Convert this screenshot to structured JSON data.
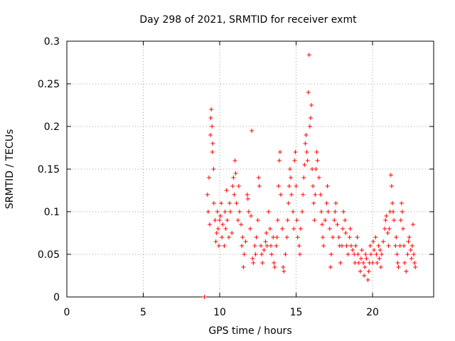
{
  "chart_data": {
    "type": "scatter",
    "title": "Day 298 of 2021, SRMTID for receiver exmt",
    "xlabel": "GPS time / hours",
    "ylabel": "SRMTID / TECUs",
    "xlim": [
      0,
      24
    ],
    "ylim": [
      0,
      0.3
    ],
    "xticks": [
      0,
      5,
      10,
      15,
      20
    ],
    "xtick_labels": [
      "0",
      "5",
      "10",
      "15",
      "20"
    ],
    "yticks": [
      0,
      0.05,
      0.1,
      0.15,
      0.2,
      0.25,
      0.3
    ],
    "ytick_labels": [
      "0",
      "0.05",
      "0.1",
      "0.15",
      "0.2",
      "0.25",
      "0.3"
    ],
    "grid": true,
    "marker": "+",
    "color": "#ff0000",
    "series": [
      {
        "name": "SRMTID",
        "points": [
          [
            9.0,
            0.0
          ],
          [
            9.2,
            0.12
          ],
          [
            9.25,
            0.1
          ],
          [
            9.3,
            0.14
          ],
          [
            9.35,
            0.085
          ],
          [
            9.4,
            0.19
          ],
          [
            9.42,
            0.21
          ],
          [
            9.45,
            0.22
          ],
          [
            9.5,
            0.2
          ],
          [
            9.52,
            0.17
          ],
          [
            9.55,
            0.18
          ],
          [
            9.6,
            0.15
          ],
          [
            9.62,
            0.11
          ],
          [
            9.7,
            0.09
          ],
          [
            9.75,
            0.065
          ],
          [
            9.8,
            0.075
          ],
          [
            9.85,
            0.1
          ],
          [
            9.9,
            0.08
          ],
          [
            9.95,
            0.06
          ],
          [
            10.0,
            0.09
          ],
          [
            10.05,
            0.095
          ],
          [
            10.1,
            0.11
          ],
          [
            10.15,
            0.07
          ],
          [
            10.2,
            0.085
          ],
          [
            10.3,
            0.06
          ],
          [
            10.35,
            0.1
          ],
          [
            10.4,
            0.08
          ],
          [
            10.45,
            0.125
          ],
          [
            10.5,
            0.09
          ],
          [
            10.6,
            0.07
          ],
          [
            10.65,
            0.11
          ],
          [
            10.7,
            0.1
          ],
          [
            10.8,
            0.075
          ],
          [
            10.85,
            0.13
          ],
          [
            10.9,
            0.14
          ],
          [
            10.95,
            0.12
          ],
          [
            11.0,
            0.16
          ],
          [
            11.05,
            0.145
          ],
          [
            11.1,
            0.11
          ],
          [
            11.2,
            0.09
          ],
          [
            11.25,
            0.13
          ],
          [
            11.3,
            0.1
          ],
          [
            11.4,
            0.085
          ],
          [
            11.45,
            0.06
          ],
          [
            11.5,
            0.07
          ],
          [
            11.55,
            0.035
          ],
          [
            11.6,
            0.05
          ],
          [
            11.7,
            0.065
          ],
          [
            11.8,
            0.12
          ],
          [
            11.85,
            0.115
          ],
          [
            11.9,
            0.1
          ],
          [
            12.0,
            0.08
          ],
          [
            12.05,
            0.095
          ],
          [
            12.1,
            0.195
          ],
          [
            12.15,
            0.045
          ],
          [
            12.2,
            0.04
          ],
          [
            12.3,
            0.06
          ],
          [
            12.35,
            0.05
          ],
          [
            12.4,
            0.07
          ],
          [
            12.5,
            0.09
          ],
          [
            12.55,
            0.14
          ],
          [
            12.6,
            0.13
          ],
          [
            12.7,
            0.06
          ],
          [
            12.75,
            0.05
          ],
          [
            12.8,
            0.04
          ],
          [
            12.9,
            0.055
          ],
          [
            13.0,
            0.065
          ],
          [
            13.05,
            0.075
          ],
          [
            13.1,
            0.06
          ],
          [
            13.2,
            0.1
          ],
          [
            13.3,
            0.08
          ],
          [
            13.35,
            0.06
          ],
          [
            13.4,
            0.05
          ],
          [
            13.5,
            0.07
          ],
          [
            13.55,
            0.04
          ],
          [
            13.6,
            0.035
          ],
          [
            13.7,
            0.06
          ],
          [
            13.75,
            0.07
          ],
          [
            13.8,
            0.09
          ],
          [
            13.85,
            0.13
          ],
          [
            13.9,
            0.16
          ],
          [
            13.95,
            0.17
          ],
          [
            14.0,
            0.12
          ],
          [
            14.1,
            0.08
          ],
          [
            14.15,
            0.035
          ],
          [
            14.2,
            0.03
          ],
          [
            14.3,
            0.05
          ],
          [
            14.4,
            0.07
          ],
          [
            14.45,
            0.09
          ],
          [
            14.5,
            0.11
          ],
          [
            14.55,
            0.13
          ],
          [
            14.6,
            0.15
          ],
          [
            14.65,
            0.14
          ],
          [
            14.7,
            0.12
          ],
          [
            14.8,
            0.1
          ],
          [
            14.85,
            0.08
          ],
          [
            14.9,
            0.16
          ],
          [
            14.95,
            0.17
          ],
          [
            15.0,
            0.13
          ],
          [
            15.05,
            0.09
          ],
          [
            15.1,
            0.07
          ],
          [
            15.2,
            0.06
          ],
          [
            15.25,
            0.05
          ],
          [
            15.3,
            0.08
          ],
          [
            15.4,
            0.1
          ],
          [
            15.45,
            0.12
          ],
          [
            15.5,
            0.14
          ],
          [
            15.55,
            0.155
          ],
          [
            15.6,
            0.18
          ],
          [
            15.65,
            0.19
          ],
          [
            15.7,
            0.17
          ],
          [
            15.75,
            0.16
          ],
          [
            15.8,
            0.24
          ],
          [
            15.85,
            0.284
          ],
          [
            15.9,
            0.2
          ],
          [
            15.95,
            0.21
          ],
          [
            16.0,
            0.225
          ],
          [
            16.05,
            0.15
          ],
          [
            16.1,
            0.13
          ],
          [
            16.15,
            0.11
          ],
          [
            16.2,
            0.09
          ],
          [
            16.25,
            0.12
          ],
          [
            16.3,
            0.15
          ],
          [
            16.35,
            0.17
          ],
          [
            16.4,
            0.16
          ],
          [
            16.5,
            0.14
          ],
          [
            16.6,
            0.12
          ],
          [
            16.65,
            0.1
          ],
          [
            16.7,
            0.085
          ],
          [
            16.75,
            0.07
          ],
          [
            16.8,
            0.06
          ],
          [
            16.9,
            0.09
          ],
          [
            17.0,
            0.11
          ],
          [
            17.05,
            0.13
          ],
          [
            17.1,
            0.1
          ],
          [
            17.2,
            0.08
          ],
          [
            17.25,
            0.035
          ],
          [
            17.3,
            0.05
          ],
          [
            17.4,
            0.07
          ],
          [
            17.5,
            0.09
          ],
          [
            17.55,
            0.1
          ],
          [
            17.6,
            0.11
          ],
          [
            17.7,
            0.085
          ],
          [
            17.8,
            0.07
          ],
          [
            17.85,
            0.06
          ],
          [
            17.9,
            0.04
          ],
          [
            18.0,
            0.06
          ],
          [
            18.05,
            0.08
          ],
          [
            18.1,
            0.1
          ],
          [
            18.2,
            0.09
          ],
          [
            18.25,
            0.075
          ],
          [
            18.3,
            0.06
          ],
          [
            18.4,
            0.05
          ],
          [
            18.5,
            0.07
          ],
          [
            18.55,
            0.08
          ],
          [
            18.6,
            0.06
          ],
          [
            18.7,
            0.055
          ],
          [
            18.8,
            0.05
          ],
          [
            18.85,
            0.04
          ],
          [
            18.9,
            0.06
          ],
          [
            19.0,
            0.07
          ],
          [
            19.05,
            0.05
          ],
          [
            19.1,
            0.04
          ],
          [
            19.2,
            0.03
          ],
          [
            19.25,
            0.045
          ],
          [
            19.3,
            0.055
          ],
          [
            19.4,
            0.04
          ],
          [
            19.45,
            0.025
          ],
          [
            19.5,
            0.035
          ],
          [
            19.55,
            0.05
          ],
          [
            19.6,
            0.045
          ],
          [
            19.7,
            0.02
          ],
          [
            19.75,
            0.03
          ],
          [
            19.8,
            0.04
          ],
          [
            19.85,
            0.06
          ],
          [
            19.9,
            0.05
          ],
          [
            20.0,
            0.04
          ],
          [
            20.05,
            0.065
          ],
          [
            20.1,
            0.055
          ],
          [
            20.2,
            0.07
          ],
          [
            20.25,
            0.05
          ],
          [
            20.3,
            0.04
          ],
          [
            20.4,
            0.06
          ],
          [
            20.45,
            0.045
          ],
          [
            20.5,
            0.055
          ],
          [
            20.55,
            0.035
          ],
          [
            20.6,
            0.05
          ],
          [
            20.7,
            0.065
          ],
          [
            20.8,
            0.08
          ],
          [
            20.85,
            0.09
          ],
          [
            20.9,
            0.095
          ],
          [
            21.0,
            0.075
          ],
          [
            21.05,
            0.06
          ],
          [
            21.1,
            0.08
          ],
          [
            21.15,
            0.1
          ],
          [
            21.2,
            0.143
          ],
          [
            21.25,
            0.13
          ],
          [
            21.3,
            0.11
          ],
          [
            21.35,
            0.1
          ],
          [
            21.4,
            0.09
          ],
          [
            21.5,
            0.06
          ],
          [
            21.55,
            0.07
          ],
          [
            21.6,
            0.05
          ],
          [
            21.65,
            0.04
          ],
          [
            21.7,
            0.035
          ],
          [
            21.8,
            0.06
          ],
          [
            21.85,
            0.09
          ],
          [
            21.9,
            0.11
          ],
          [
            21.95,
            0.1
          ],
          [
            22.0,
            0.08
          ],
          [
            22.05,
            0.06
          ],
          [
            22.1,
            0.04
          ],
          [
            22.2,
            0.03
          ],
          [
            22.3,
            0.05
          ],
          [
            22.35,
            0.065
          ],
          [
            22.4,
            0.07
          ],
          [
            22.5,
            0.055
          ],
          [
            22.55,
            0.045
          ],
          [
            22.6,
            0.06
          ],
          [
            22.65,
            0.085
          ],
          [
            22.7,
            0.05
          ],
          [
            22.75,
            0.04
          ],
          [
            22.8,
            0.035
          ]
        ]
      }
    ]
  }
}
